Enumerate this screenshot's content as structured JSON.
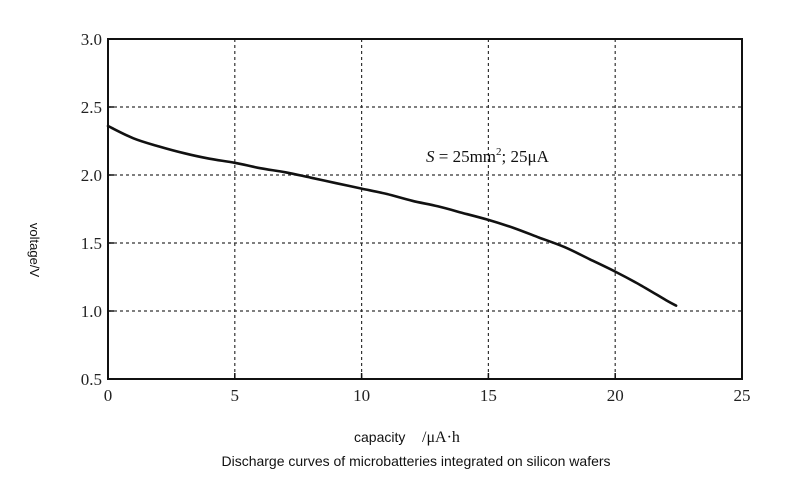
{
  "chart_data": {
    "type": "line",
    "title": "",
    "xlabel": "capacity",
    "xlabel_unit": "/μA·h",
    "ylabel": "voltage/V",
    "xlim": [
      0,
      25
    ],
    "ylim": [
      0.5,
      3.0
    ],
    "xticks": [
      "0",
      "5",
      "10",
      "15",
      "20",
      "25"
    ],
    "yticks": [
      "0.5",
      "1.0",
      "1.5",
      "2.0",
      "2.5",
      "3.0"
    ],
    "grid": true,
    "annotation": {
      "symbol": "S",
      "rest": " = 25mm",
      "sup": "2",
      "tail": "; 25μA"
    },
    "series": [
      {
        "x": [
          0,
          1,
          2,
          3,
          4,
          5,
          6,
          7,
          8,
          9,
          10,
          11,
          12,
          13,
          14,
          15,
          16,
          17,
          18,
          19,
          20,
          21,
          22,
          22.4
        ],
        "y": [
          2.36,
          2.27,
          2.21,
          2.16,
          2.12,
          2.09,
          2.05,
          2.02,
          1.98,
          1.94,
          1.9,
          1.86,
          1.81,
          1.77,
          1.72,
          1.67,
          1.61,
          1.54,
          1.47,
          1.38,
          1.29,
          1.19,
          1.08,
          1.04
        ]
      }
    ],
    "line_color": "#111111",
    "grid_color": "#333333"
  },
  "caption": "Discharge curves of microbatteries integrated on silicon wafers"
}
